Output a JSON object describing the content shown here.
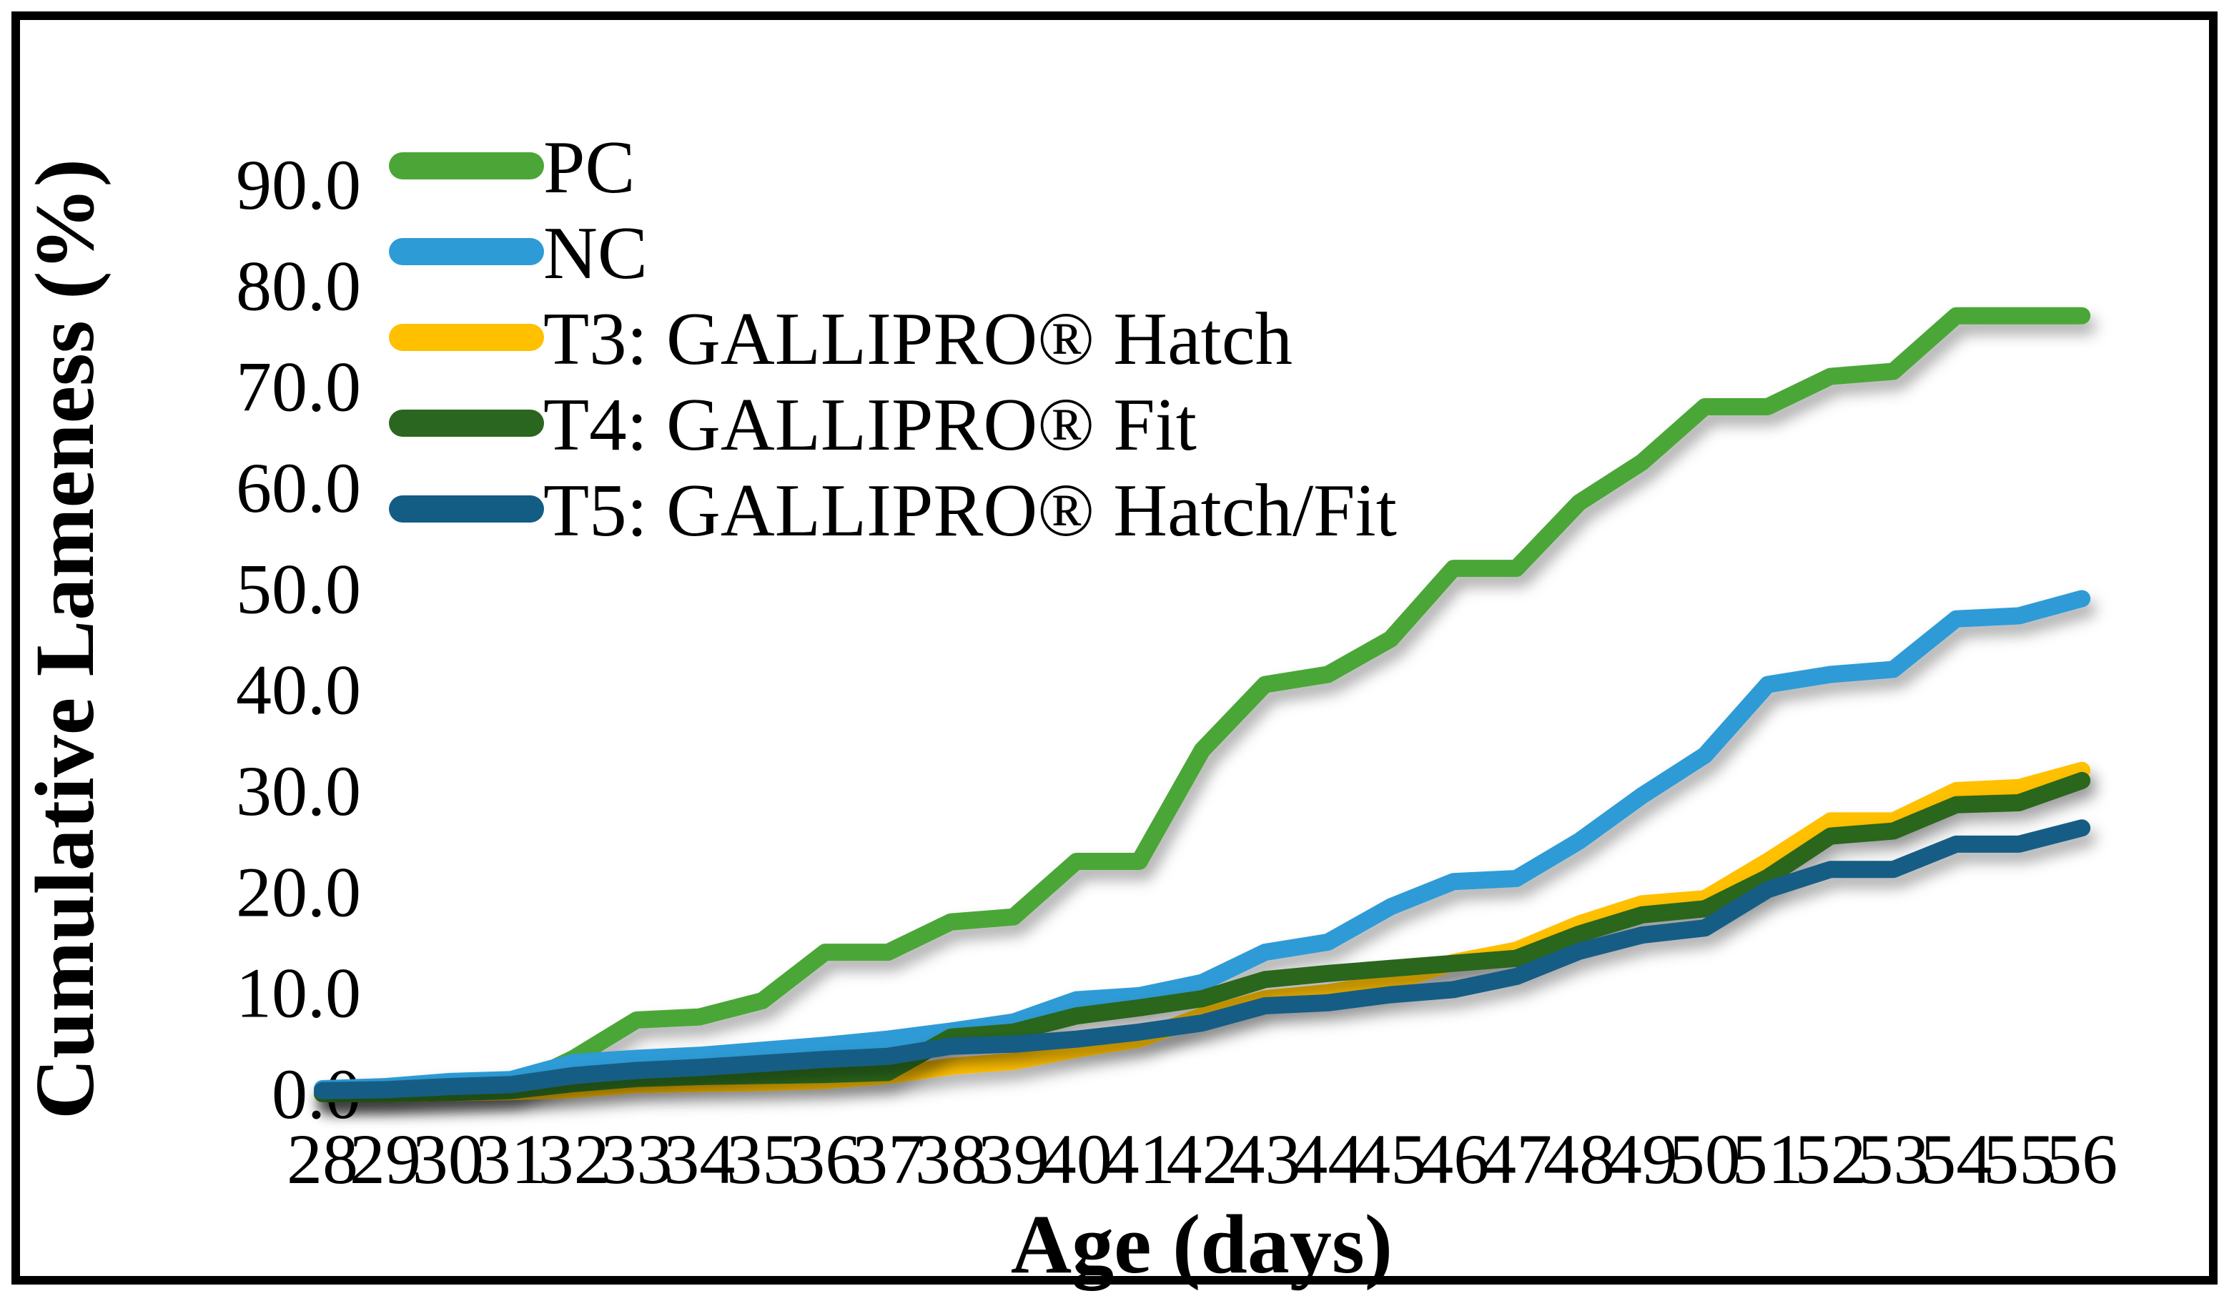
{
  "figure": {
    "background": "#FFFFFF",
    "border_color": "#000000",
    "gridline_color": "#D9D9D9",
    "zero_line_color": "#C9C9C9"
  },
  "chart_data": {
    "type": "line",
    "title": "",
    "xlabel": "Age (days)",
    "ylabel": "Cumulative Lameness (%)",
    "x": [
      28,
      29,
      30,
      31,
      32,
      33,
      34,
      35,
      36,
      37,
      38,
      39,
      40,
      41,
      42,
      43,
      44,
      45,
      46,
      47,
      48,
      49,
      50,
      51,
      52,
      53,
      54,
      55,
      56
    ],
    "xlim": [
      28,
      56
    ],
    "ylim": [
      0,
      90
    ],
    "ytick_labels": [
      "0.0",
      "10.0",
      "20.0",
      "30.0",
      "40.0",
      "50.0",
      "60.0",
      "70.0",
      "80.0",
      "90.0"
    ],
    "ytick_values": [
      0,
      10,
      20,
      30,
      40,
      50,
      60,
      70,
      80,
      90
    ],
    "grid": "horizontal",
    "legend_position": "top-left-inside",
    "series": [
      {
        "name": "PC",
        "slug": "pc",
        "color": "#4CA637",
        "values": [
          0,
          0,
          0.2,
          0.5,
          3.5,
          7.3,
          7.6,
          9.2,
          14,
          14,
          17,
          17.5,
          23,
          23,
          34,
          40.5,
          41.5,
          45,
          52,
          52,
          58.5,
          62.5,
          68,
          68,
          71,
          71.5,
          77,
          77,
          77
        ]
      },
      {
        "name": "NC",
        "slug": "nc",
        "color": "#2D9BD6",
        "values": [
          0.5,
          0.7,
          1.2,
          1.4,
          3.1,
          3.5,
          3.8,
          4.3,
          4.8,
          5.4,
          6.2,
          7.1,
          9.3,
          9.7,
          11,
          14,
          15,
          18.5,
          21,
          21.3,
          25,
          29.5,
          33.5,
          40.5,
          41.5,
          42,
          47,
          47.3,
          49
        ]
      },
      {
        "name": "T3: GALLIPRO® Hatch",
        "slug": "t3",
        "color": "#FFC000",
        "values": [
          0,
          0,
          0.1,
          0.2,
          0.4,
          0.9,
          1,
          1.1,
          1.3,
          1.8,
          2.7,
          3.2,
          4.4,
          5.4,
          7.7,
          9.4,
          10,
          11,
          13,
          14.2,
          16.8,
          18.8,
          19.3,
          23,
          27,
          27,
          30,
          30.3,
          32
        ]
      },
      {
        "name": "T4: GALLIPRO® Fit",
        "slug": "t4",
        "color": "#2A661F",
        "values": [
          0,
          0,
          0.1,
          0.3,
          1,
          1.5,
          1.7,
          1.8,
          1.9,
          2.1,
          5.6,
          6.1,
          7.7,
          8.5,
          9.4,
          11.3,
          11.9,
          12.4,
          12.9,
          13.4,
          15.8,
          17.7,
          18.3,
          21.4,
          25.5,
          26,
          28.6,
          28.8,
          31
        ]
      },
      {
        "name": "T5: GALLIPRO® Hatch/Fit",
        "slug": "t5",
        "color": "#135D85",
        "values": [
          0.3,
          0.4,
          0.7,
          0.9,
          1.8,
          2.3,
          2.6,
          3,
          3.4,
          3.7,
          4.7,
          4.9,
          5.4,
          6.1,
          7,
          8.7,
          9,
          9.8,
          10.3,
          11.6,
          14.1,
          15.7,
          16.4,
          20.2,
          22.2,
          22.2,
          24.7,
          24.7,
          26.3
        ]
      }
    ]
  }
}
